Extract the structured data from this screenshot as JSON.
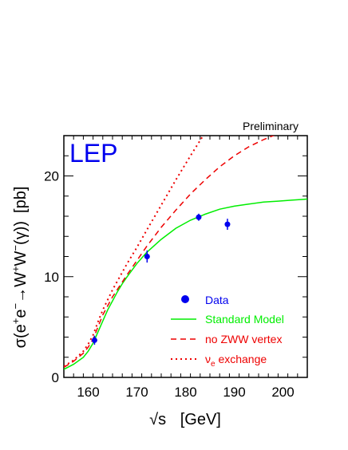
{
  "chart_data": {
    "type": "line",
    "title": "",
    "preliminary_label": "Preliminary",
    "experiment_label": "LEP",
    "xlabel_root": "√s",
    "xlabel_unit": "[GeV]",
    "ylabel_main": "σ(e",
    "ylabel_sup1": "+",
    "ylabel_mid1": "e",
    "ylabel_sup2": "−",
    "ylabel_arrow": "→W",
    "ylabel_sup3": "+",
    "ylabel_mid2": "W",
    "ylabel_sup4": "−",
    "ylabel_end": "(γ))",
    "ylabel_unit": "[pb]",
    "xlim": [
      155,
      205
    ],
    "ylim": [
      0,
      24
    ],
    "x_ticks": [
      160,
      170,
      180,
      190,
      200
    ],
    "y_ticks": [
      0,
      10,
      20
    ],
    "data_points": {
      "name": "Data",
      "color": "#0000ee",
      "points": [
        {
          "x": 161.3,
          "y": 3.69,
          "err": 0.45
        },
        {
          "x": 172.1,
          "y": 12.0,
          "err": 0.6
        },
        {
          "x": 182.7,
          "y": 15.9,
          "err": 0.35
        },
        {
          "x": 188.6,
          "y": 15.2,
          "err": 0.55
        }
      ]
    },
    "series": [
      {
        "name": "Standard Model",
        "color": "#00ee00",
        "style": "solid",
        "x": [
          155,
          157,
          159,
          160,
          161,
          162,
          163,
          164,
          165,
          166,
          167,
          168,
          170,
          172,
          175,
          178,
          181,
          184,
          187,
          190,
          193,
          196,
          199,
          202,
          205
        ],
        "y": [
          0.8,
          1.3,
          2.0,
          2.6,
          3.4,
          4.5,
          5.6,
          6.7,
          7.6,
          8.5,
          9.3,
          10.0,
          11.3,
          12.4,
          13.7,
          14.8,
          15.6,
          16.2,
          16.7,
          17.0,
          17.2,
          17.4,
          17.5,
          17.6,
          17.7
        ]
      },
      {
        "name": "no ZWW vertex",
        "color": "#ee0000",
        "style": "dashed",
        "x": [
          155,
          157,
          159,
          160,
          161,
          162,
          163,
          165,
          168,
          170,
          172,
          175,
          178,
          181,
          184,
          187,
          190,
          193,
          196,
          199,
          202,
          205
        ],
        "y": [
          1.0,
          1.6,
          2.4,
          3.0,
          3.8,
          5.0,
          6.2,
          8.0,
          10.2,
          11.6,
          13.0,
          14.9,
          16.6,
          18.2,
          19.6,
          20.9,
          22.0,
          22.9,
          23.6,
          24.2,
          24.7,
          25.1
        ]
      },
      {
        "name": "ν",
        "name_sub": "e",
        "name_rest": " exchange",
        "color": "#ee0000",
        "style": "dotted",
        "x": [
          155,
          157,
          159,
          160,
          161,
          162,
          163,
          165,
          168,
          170,
          172,
          175,
          178,
          181,
          184,
          186
        ],
        "y": [
          1.1,
          1.7,
          2.6,
          3.3,
          4.2,
          5.5,
          6.7,
          8.7,
          11.3,
          12.9,
          14.6,
          17.1,
          19.6,
          22.0,
          24.3,
          25.8
        ]
      }
    ],
    "legend_position": "bottom-right"
  }
}
